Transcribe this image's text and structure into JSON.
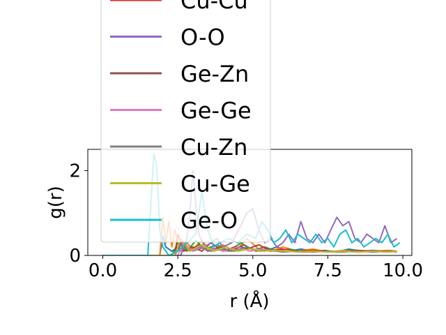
{
  "chart_data": {
    "type": "line",
    "title": "",
    "xlabel": "r (Å)",
    "ylabel": "g(r)",
    "xlim": [
      -0.5,
      10.3
    ],
    "ylim": [
      0,
      2.5
    ],
    "xticks": [
      0.0,
      2.5,
      5.0,
      7.5,
      10.0
    ],
    "xtick_labels": [
      "0.0",
      "2.5",
      "5.0",
      "7.5",
      "10.0"
    ],
    "yticks": [
      0,
      2
    ],
    "ytick_labels": [
      "0",
      "2"
    ],
    "grid": false,
    "legend_placement": "upper-center overflowing top",
    "series": [
      {
        "name": "",
        "color": "#1f77b4",
        "x": [
          0,
          1.7,
          1.8,
          1.9,
          2.0,
          2.1,
          2.3,
          2.6,
          3.0,
          3.4,
          3.8,
          4.2,
          4.6,
          5.0,
          5.4,
          5.8,
          6.2,
          6.6,
          7.0,
          7.4,
          7.8,
          8.2,
          8.6,
          9.0,
          9.4,
          9.8
        ],
        "y": [
          0,
          0,
          0,
          0,
          0.45,
          0.2,
          0.1,
          0.25,
          0.1,
          0.2,
          0.15,
          0.1,
          0.2,
          0.15,
          0.1,
          0.2,
          0.1,
          0.15,
          0.1,
          0.12,
          0.08,
          0.15,
          0.1,
          0.12,
          0.1,
          0.1
        ]
      },
      {
        "name": "",
        "color": "#ff7f0e",
        "x": [
          0,
          1.9,
          2.0,
          2.1,
          2.2,
          2.3,
          2.4,
          2.6,
          2.8,
          3.0,
          3.3,
          3.6,
          4.0,
          4.4,
          4.8,
          5.2,
          5.6,
          6.0,
          6.5,
          7.0,
          7.5,
          8.0,
          8.5,
          9.0,
          9.5,
          9.8
        ],
        "y": [
          0,
          0,
          0.9,
          0.3,
          0.8,
          0.2,
          0.6,
          0.1,
          0.3,
          0.15,
          0.35,
          0.1,
          0.25,
          0.1,
          0.4,
          0.15,
          0.1,
          0.2,
          0.1,
          0.15,
          0.08,
          0.12,
          0.1,
          0.1,
          0.12,
          0.1
        ]
      },
      {
        "name": "",
        "color": "#2ca02c",
        "x": [
          0,
          2.3,
          2.5,
          2.8,
          3.1,
          3.4,
          3.8,
          4.2,
          4.6,
          5.0,
          5.4,
          5.8,
          6.2,
          6.6,
          7.0,
          7.5,
          8.0,
          8.5,
          9.0,
          9.5,
          9.8
        ],
        "y": [
          0,
          0,
          0.3,
          0.1,
          0.35,
          0.15,
          0.25,
          0.1,
          0.3,
          0.12,
          0.2,
          0.1,
          0.15,
          0.1,
          0.12,
          0.08,
          0.1,
          0.12,
          0.08,
          0.1,
          0.1
        ]
      },
      {
        "name": "Cu-Cu",
        "color": "#d62728",
        "x": [
          0,
          2.4,
          2.5,
          2.7,
          3.0,
          3.3,
          3.6,
          4.0,
          4.4,
          4.8,
          5.2,
          5.6,
          6.0,
          6.5,
          7.0,
          7.5,
          8.0,
          8.5,
          9.0,
          9.5,
          9.8
        ],
        "y": [
          0,
          0,
          0.5,
          0.1,
          0.2,
          0.1,
          0.3,
          0.1,
          0.2,
          0.15,
          0.25,
          0.1,
          0.15,
          0.1,
          0.12,
          0.1,
          0.08,
          0.12,
          0.1,
          0.1,
          0.1
        ]
      },
      {
        "name": "O-O",
        "color": "#9467bd",
        "x": [
          0,
          2.6,
          2.8,
          2.9,
          3.0,
          3.1,
          3.2,
          3.4,
          3.6,
          3.8,
          4.0,
          4.3,
          4.6,
          4.8,
          5.0,
          5.2,
          5.4,
          5.6,
          5.8,
          6.0,
          6.2,
          6.4,
          6.6,
          6.8,
          7.0,
          7.2,
          7.4,
          7.6,
          7.8,
          8.0,
          8.2,
          8.4,
          8.6,
          8.8,
          9.0,
          9.2,
          9.4,
          9.6,
          9.8
        ],
        "y": [
          0,
          0,
          0.4,
          1.0,
          2.0,
          1.2,
          0.5,
          0.2,
          0.3,
          0.4,
          0.2,
          0.3,
          0.7,
          1.0,
          1.1,
          0.6,
          0.3,
          0.4,
          0.2,
          0.3,
          0.5,
          0.3,
          0.8,
          0.4,
          0.3,
          0.5,
          0.3,
          0.6,
          0.9,
          0.7,
          0.8,
          0.4,
          0.3,
          0.5,
          0.4,
          0.3,
          0.7,
          0.3,
          0.4
        ]
      },
      {
        "name": "Ge-Zn",
        "color": "#8c564b",
        "x": [
          0,
          2.4,
          2.6,
          2.9,
          3.2,
          3.5,
          3.9,
          4.3,
          4.7,
          5.1,
          5.5,
          5.9,
          6.3,
          6.7,
          7.1,
          7.5,
          8.0,
          8.5,
          9.0,
          9.5,
          9.8
        ],
        "y": [
          0,
          0,
          0.35,
          0.1,
          0.25,
          0.1,
          0.2,
          0.1,
          0.25,
          0.1,
          0.15,
          0.1,
          0.12,
          0.08,
          0.1,
          0.08,
          0.1,
          0.08,
          0.1,
          0.08,
          0.1
        ]
      },
      {
        "name": "Ge-Ge",
        "color": "#e377c2",
        "x": [
          0,
          2.5,
          2.7,
          3.0,
          3.3,
          3.7,
          4.1,
          4.5,
          4.9,
          5.3,
          5.7,
          6.1,
          6.5,
          7.0,
          7.5,
          8.0,
          8.5,
          9.0,
          9.5,
          9.8
        ],
        "y": [
          0,
          0,
          0.3,
          0.1,
          0.2,
          0.15,
          0.1,
          0.2,
          0.1,
          0.15,
          0.1,
          0.12,
          0.08,
          0.1,
          0.08,
          0.1,
          0.08,
          0.1,
          0.08,
          0.1
        ]
      },
      {
        "name": "Cu-Zn",
        "color": "#7f7f7f",
        "x": [
          0,
          2.4,
          2.6,
          2.9,
          3.2,
          3.6,
          4.0,
          4.4,
          4.8,
          5.2,
          5.6,
          6.0,
          6.5,
          7.0,
          7.5,
          8.0,
          8.5,
          9.0,
          9.5,
          9.8
        ],
        "y": [
          0,
          0,
          0.25,
          0.1,
          0.2,
          0.1,
          0.15,
          0.1,
          0.2,
          0.1,
          0.12,
          0.08,
          0.1,
          0.08,
          0.1,
          0.08,
          0.1,
          0.08,
          0.1,
          0.08
        ]
      },
      {
        "name": "Cu-Ge",
        "color": "#bcbd22",
        "x": [
          0,
          2.4,
          2.6,
          2.9,
          3.3,
          3.7,
          4.1,
          4.5,
          4.9,
          5.3,
          5.7,
          6.1,
          6.5,
          7.0,
          7.5,
          8.0,
          8.5,
          9.0,
          9.5,
          9.8
        ],
        "y": [
          0,
          0,
          0.4,
          0.1,
          0.25,
          0.1,
          0.2,
          0.1,
          0.15,
          0.1,
          0.12,
          0.1,
          0.08,
          0.1,
          0.08,
          0.1,
          0.08,
          0.1,
          0.08,
          0.1
        ]
      },
      {
        "name": "Ge-O",
        "color": "#17becf",
        "x": [
          0,
          1.5,
          1.6,
          1.7,
          1.8,
          1.9,
          2.0,
          2.2,
          2.5,
          2.8,
          3.1,
          3.3,
          3.5,
          3.7,
          3.9,
          4.2,
          4.5,
          4.8,
          5.1,
          5.3,
          5.5,
          5.7,
          5.9,
          6.1,
          6.3,
          6.5,
          6.7,
          6.9,
          7.1,
          7.3,
          7.5,
          7.7,
          7.9,
          8.1,
          8.3,
          8.5,
          8.7,
          8.9,
          9.1,
          9.3,
          9.5,
          9.7,
          9.9
        ],
        "y": [
          0,
          0,
          1.2,
          2.4,
          2.1,
          0.6,
          0.2,
          0.0,
          0.1,
          0.3,
          0.5,
          1.5,
          0.6,
          0.2,
          0.3,
          0.4,
          0.3,
          0.5,
          0.4,
          0.8,
          0.6,
          0.3,
          0.4,
          0.6,
          0.3,
          0.5,
          0.4,
          0.3,
          0.5,
          0.3,
          0.4,
          0.2,
          0.5,
          0.6,
          0.3,
          0.4,
          0.2,
          0.3,
          0.4,
          0.3,
          0.5,
          0.2,
          0.3
        ]
      }
    ]
  }
}
